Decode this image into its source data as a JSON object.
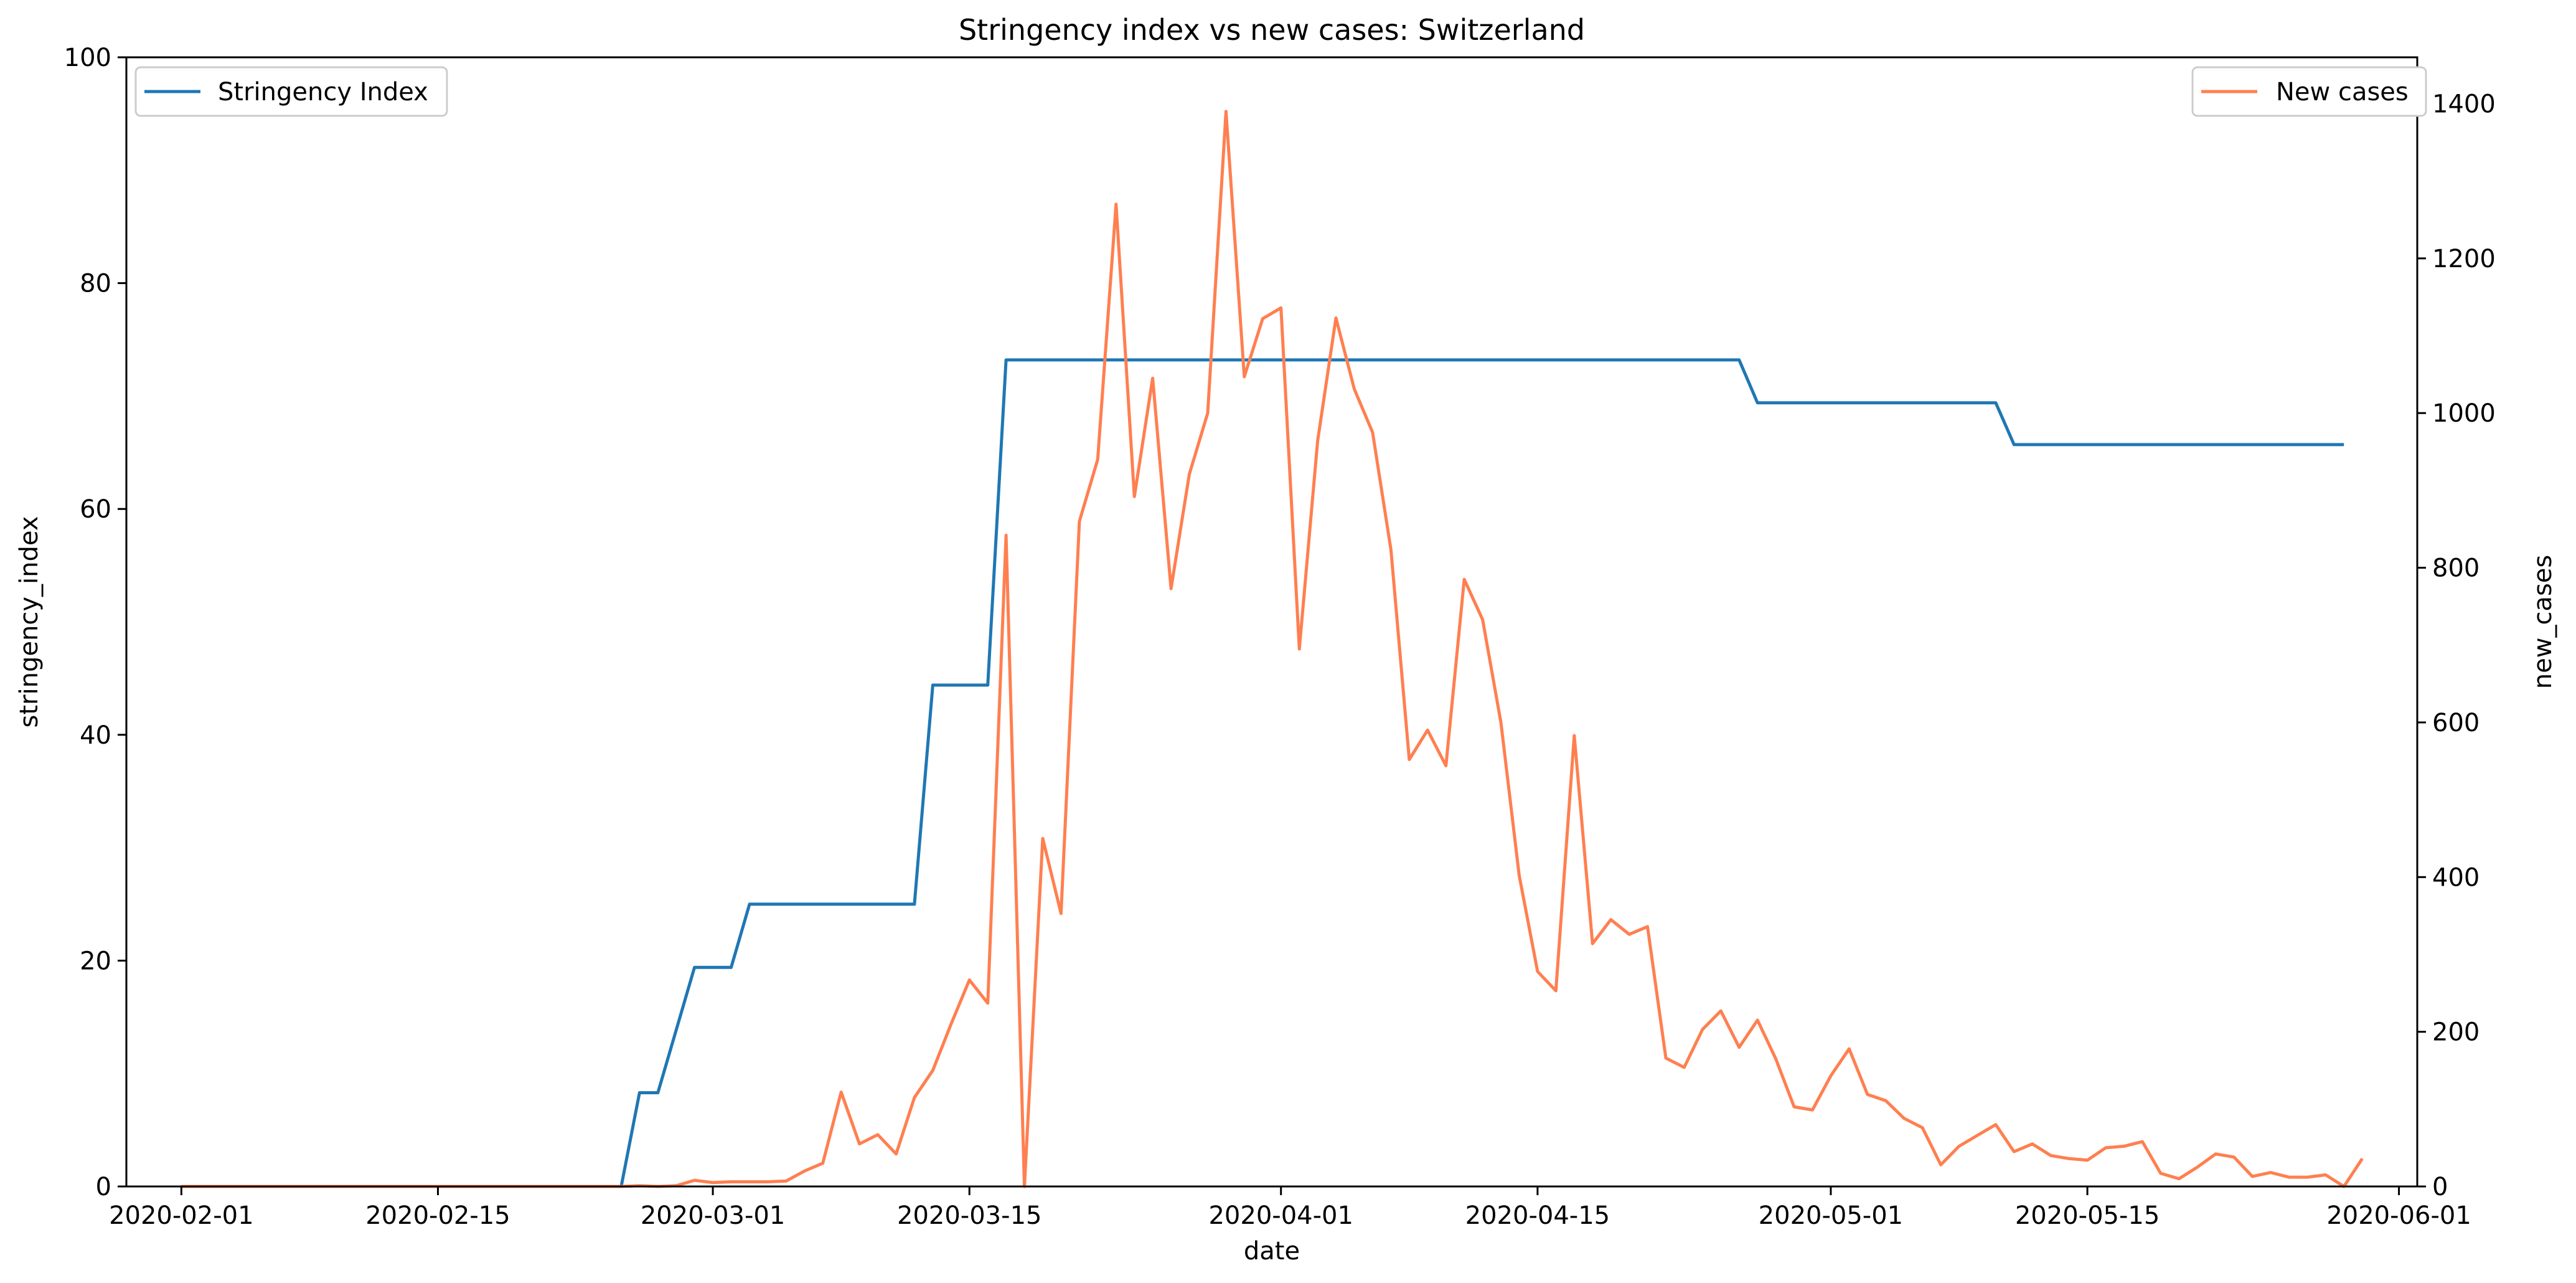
{
  "chart_data": {
    "type": "line",
    "title": "Stringency index vs new cases:  Switzerland",
    "xlabel": "date",
    "ylabel_left": "stringency_index",
    "ylabel_right": "new_cases",
    "xlim": [
      "2020-01-29",
      "2020-06-02"
    ],
    "ylim_left": [
      0,
      100
    ],
    "ylim_right": [
      0,
      1460
    ],
    "x_ticks": [
      "2020-02-01",
      "2020-02-15",
      "2020-03-01",
      "2020-03-15",
      "2020-04-01",
      "2020-04-15",
      "2020-05-01",
      "2020-05-15",
      "2020-06-01"
    ],
    "y_ticks_left": [
      0,
      20,
      40,
      60,
      80,
      100
    ],
    "y_ticks_right": [
      0,
      200,
      400,
      600,
      800,
      1000,
      1200,
      1400
    ],
    "grid": false,
    "series": [
      {
        "name": "Stringency Index",
        "axis": "left",
        "color": "#1f77b4",
        "legend_position": "top-left",
        "points": [
          [
            "2020-02-01",
            0
          ],
          [
            "2020-02-25",
            0
          ],
          [
            "2020-02-26",
            8.3
          ],
          [
            "2020-02-27",
            8.3
          ],
          [
            "2020-02-29",
            19.4
          ],
          [
            "2020-03-02",
            19.4
          ],
          [
            "2020-03-03",
            25
          ],
          [
            "2020-03-12",
            25
          ],
          [
            "2020-03-13",
            44.4
          ],
          [
            "2020-03-16",
            44.4
          ],
          [
            "2020-03-17",
            73.2
          ],
          [
            "2020-04-26",
            73.2
          ],
          [
            "2020-04-27",
            69.4
          ],
          [
            "2020-05-10",
            69.4
          ],
          [
            "2020-05-11",
            65.7
          ],
          [
            "2020-05-29",
            65.7
          ]
        ]
      },
      {
        "name": "New cases",
        "axis": "right",
        "color": "#ff7f50",
        "legend_position": "top-right",
        "points": [
          [
            "2020-02-01",
            0
          ],
          [
            "2020-02-25",
            0
          ],
          [
            "2020-02-26",
            1
          ],
          [
            "2020-02-27",
            0
          ],
          [
            "2020-02-28",
            1
          ],
          [
            "2020-02-29",
            8
          ],
          [
            "2020-03-01",
            5
          ],
          [
            "2020-03-02",
            6
          ],
          [
            "2020-03-03",
            6
          ],
          [
            "2020-03-04",
            6
          ],
          [
            "2020-03-05",
            7
          ],
          [
            "2020-03-06",
            20
          ],
          [
            "2020-03-07",
            30
          ],
          [
            "2020-03-08",
            122
          ],
          [
            "2020-03-09",
            55
          ],
          [
            "2020-03-10",
            67
          ],
          [
            "2020-03-11",
            42
          ],
          [
            "2020-03-12",
            115
          ],
          [
            "2020-03-13",
            150
          ],
          [
            "2020-03-14",
            210
          ],
          [
            "2020-03-15",
            267
          ],
          [
            "2020-03-16",
            237
          ],
          [
            "2020-03-17",
            842
          ],
          [
            "2020-03-18",
            0
          ],
          [
            "2020-03-19",
            450
          ],
          [
            "2020-03-20",
            353
          ],
          [
            "2020-03-21",
            860
          ],
          [
            "2020-03-22",
            940
          ],
          [
            "2020-03-23",
            1270
          ],
          [
            "2020-03-24",
            892
          ],
          [
            "2020-03-25",
            1045
          ],
          [
            "2020-03-26",
            773
          ],
          [
            "2020-03-27",
            921
          ],
          [
            "2020-03-28",
            1000
          ],
          [
            "2020-03-29",
            1390
          ],
          [
            "2020-03-30",
            1047
          ],
          [
            "2020-03-31",
            1122
          ],
          [
            "2020-04-01",
            1136
          ],
          [
            "2020-04-02",
            695
          ],
          [
            "2020-04-03",
            964
          ],
          [
            "2020-04-04",
            1123
          ],
          [
            "2020-04-05",
            1031
          ],
          [
            "2020-04-06",
            975
          ],
          [
            "2020-04-07",
            823
          ],
          [
            "2020-04-08",
            552
          ],
          [
            "2020-04-09",
            590
          ],
          [
            "2020-04-10",
            544
          ],
          [
            "2020-04-11",
            785
          ],
          [
            "2020-04-12",
            733
          ],
          [
            "2020-04-13",
            600
          ],
          [
            "2020-04-14",
            402
          ],
          [
            "2020-04-15",
            278
          ],
          [
            "2020-04-16",
            253
          ],
          [
            "2020-04-17",
            583
          ],
          [
            "2020-04-18",
            314
          ],
          [
            "2020-04-19",
            345
          ],
          [
            "2020-04-20",
            326
          ],
          [
            "2020-04-21",
            336
          ],
          [
            "2020-04-22",
            166
          ],
          [
            "2020-04-23",
            154
          ],
          [
            "2020-04-24",
            203
          ],
          [
            "2020-04-25",
            227
          ],
          [
            "2020-04-26",
            180
          ],
          [
            "2020-04-27",
            215
          ],
          [
            "2020-04-28",
            165
          ],
          [
            "2020-04-29",
            103
          ],
          [
            "2020-04-30",
            99
          ],
          [
            "2020-05-01",
            143
          ],
          [
            "2020-05-02",
            178
          ],
          [
            "2020-05-03",
            119
          ],
          [
            "2020-05-04",
            111
          ],
          [
            "2020-05-05",
            88
          ],
          [
            "2020-05-06",
            76
          ],
          [
            "2020-05-07",
            28
          ],
          [
            "2020-05-08",
            52
          ],
          [
            "2020-05-09",
            66
          ],
          [
            "2020-05-10",
            80
          ],
          [
            "2020-05-11",
            45
          ],
          [
            "2020-05-12",
            55
          ],
          [
            "2020-05-13",
            40
          ],
          [
            "2020-05-14",
            36
          ],
          [
            "2020-05-15",
            34
          ],
          [
            "2020-05-16",
            50
          ],
          [
            "2020-05-17",
            52
          ],
          [
            "2020-05-18",
            58
          ],
          [
            "2020-05-19",
            17
          ],
          [
            "2020-05-20",
            10
          ],
          [
            "2020-05-21",
            25
          ],
          [
            "2020-05-22",
            42
          ],
          [
            "2020-05-23",
            38
          ],
          [
            "2020-05-24",
            13
          ],
          [
            "2020-05-25",
            18
          ],
          [
            "2020-05-26",
            12
          ],
          [
            "2020-05-27",
            12
          ],
          [
            "2020-05-28",
            15
          ],
          [
            "2020-05-29",
            0
          ],
          [
            "2020-05-30",
            36
          ]
        ]
      }
    ]
  }
}
